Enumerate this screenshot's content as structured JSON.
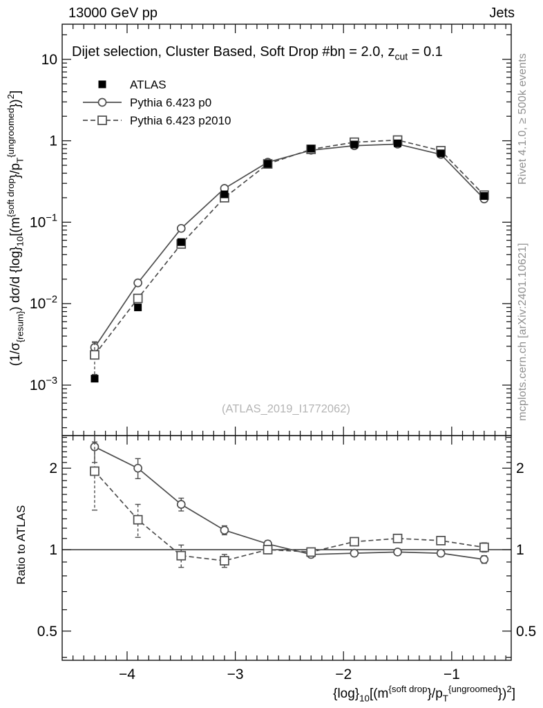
{
  "header": {
    "left": "13000 GeV pp",
    "right": "Jets"
  },
  "side_notes": {
    "rivet": "Rivet 4.1.0, ≥ 500k events",
    "mcplots": "mcplots.cern.ch [arXiv:2401.10621]"
  },
  "watermark": "(ATLAS_2019_I1772062)",
  "chart_data": {
    "type": "line",
    "title_text": "Dijet selection, Cluster Based, Soft Drop #bη = 2.0, z_cut = 0.1",
    "title_segments": [
      {
        "t": "Dijet selection, Cluster Based, Soft Drop #bη = 2.0, z"
      },
      {
        "t": "cut",
        "s": "sub"
      },
      {
        "t": " = 0.1"
      }
    ],
    "xlabel_text": "{log}_10[(m^{soft drop}/p_T^{ungroomed})^2]",
    "xlabel_segments": [
      {
        "t": "{log}"
      },
      {
        "t": "10",
        "s": "sub"
      },
      {
        "t": "[(m"
      },
      {
        "t": "{soft drop",
        "s": "sup"
      },
      {
        "t": "}/p"
      },
      {
        "t": "T",
        "s": "sub"
      },
      {
        "t": "{ungroomed",
        "s": "sup"
      },
      {
        "t": "})"
      },
      {
        "t": "2",
        "s": "sup"
      },
      {
        "t": "]"
      }
    ],
    "ylabel_text": "(1/σ_{resum}) dσ/d {log}_10[(m^{soft drop}/p_T^{ungroomed})^2]",
    "ylabel_segments": [
      {
        "t": "(1/σ"
      },
      {
        "t": "{resum}",
        "s": "sub"
      },
      {
        "t": ") dσ/d {log}"
      },
      {
        "t": "10",
        "s": "sub"
      },
      {
        "t": "[(m"
      },
      {
        "t": "{soft drop",
        "s": "sup"
      },
      {
        "t": "}/p"
      },
      {
        "t": "T",
        "s": "sub"
      },
      {
        "t": "{ungroomed",
        "s": "sup"
      },
      {
        "t": "})"
      },
      {
        "t": "2",
        "s": "sup"
      },
      {
        "t": "]"
      }
    ],
    "xlim": [
      -4.6,
      -0.45
    ],
    "ylim": [
      0.00024,
      27
    ],
    "x_major_ticks": [
      {
        "v": -4,
        "b": "−4"
      },
      {
        "v": -3,
        "b": "−3"
      },
      {
        "v": -2,
        "b": "−2"
      },
      {
        "v": -1,
        "b": "−1"
      }
    ],
    "x_minor_step": 0.1,
    "y_major_labels": [
      {
        "v": 10,
        "b": "10"
      },
      {
        "v": 1,
        "b": "1"
      },
      {
        "v": 0.1,
        "b": "10",
        "e": "−1"
      },
      {
        "v": 0.01,
        "b": "10",
        "e": "−2"
      },
      {
        "v": 0.001,
        "b": "10",
        "e": "−3"
      }
    ],
    "x": [
      -4.3,
      -3.9,
      -3.5,
      -3.1,
      -2.7,
      -2.3,
      -1.9,
      -1.5,
      -1.1,
      -0.7
    ],
    "series": [
      {
        "name": "ATLAS",
        "marker": "filled-square",
        "line": "none",
        "color": "#000000",
        "values": [
          0.0012,
          0.009,
          0.057,
          0.22,
          0.52,
          0.8,
          0.9,
          0.93,
          0.7,
          0.21
        ],
        "errors": [
          0.0001,
          0.0004,
          0.0015,
          0.005,
          0.008,
          0.008,
          0.008,
          0.008,
          0.006,
          0.004
        ]
      },
      {
        "name": "Pythia 6.423 p0",
        "marker": "open-circle",
        "line": "solid",
        "color": "#4d4d4d",
        "values": [
          0.0029,
          0.018,
          0.084,
          0.26,
          0.545,
          0.765,
          0.87,
          0.91,
          0.68,
          0.193
        ],
        "errors": [
          0.0005,
          0.0012,
          0.004,
          0.009,
          0.012,
          0.012,
          0.012,
          0.012,
          0.01,
          0.006
        ]
      },
      {
        "name": "Pythia 6.423 p2010",
        "marker": "open-square",
        "line": "dashed",
        "color": "#4d4d4d",
        "values": [
          0.00235,
          0.0116,
          0.054,
          0.2,
          0.52,
          0.785,
          0.96,
          1.02,
          0.755,
          0.215
        ],
        "errors": [
          0.001,
          0.0011,
          0.0035,
          0.008,
          0.011,
          0.011,
          0.013,
          0.013,
          0.011,
          0.007
        ]
      }
    ],
    "ratio": {
      "ylabel": "Ratio to ATLAS",
      "ylim": [
        0.39,
        2.64
      ],
      "reference": 1,
      "y_major_labels": [
        {
          "v": 2,
          "b": "2"
        },
        {
          "v": 1,
          "b": "1"
        },
        {
          "v": 0.5,
          "b": "0.5"
        }
      ],
      "series": [
        {
          "name": "Pythia 6.423 p0",
          "marker": "open-circle",
          "line": "solid",
          "color": "#4d4d4d",
          "values": [
            2.4,
            2.0,
            1.47,
            1.18,
            1.05,
            0.96,
            0.97,
            0.98,
            0.97,
            0.92
          ],
          "errors": [
            0.3,
            0.17,
            0.08,
            0.045,
            0.03,
            0.02,
            0.02,
            0.02,
            0.025,
            0.03
          ]
        },
        {
          "name": "Pythia 6.423 p2010",
          "marker": "open-square",
          "line": "dashed",
          "color": "#4d4d4d",
          "values": [
            1.95,
            1.29,
            0.95,
            0.91,
            1.0,
            0.98,
            1.07,
            1.1,
            1.08,
            1.02
          ],
          "errors": [
            0.55,
            0.18,
            0.09,
            0.05,
            0.035,
            0.025,
            0.025,
            0.03,
            0.035,
            0.04
          ]
        }
      ]
    },
    "legend": {
      "items": [
        {
          "label": "ATLAS",
          "marker": "filled-square",
          "line": "none"
        },
        {
          "label": "Pythia 6.423 p0",
          "marker": "open-circle",
          "line": "solid"
        },
        {
          "label": "Pythia 6.423 p2010",
          "marker": "open-square",
          "line": "dashed"
        }
      ]
    },
    "colors": {
      "frame": "#111111",
      "model": "#4d4d4d",
      "data": "#000000",
      "watermark": "#b5b5b5",
      "notes": "#8f8f8f"
    }
  }
}
